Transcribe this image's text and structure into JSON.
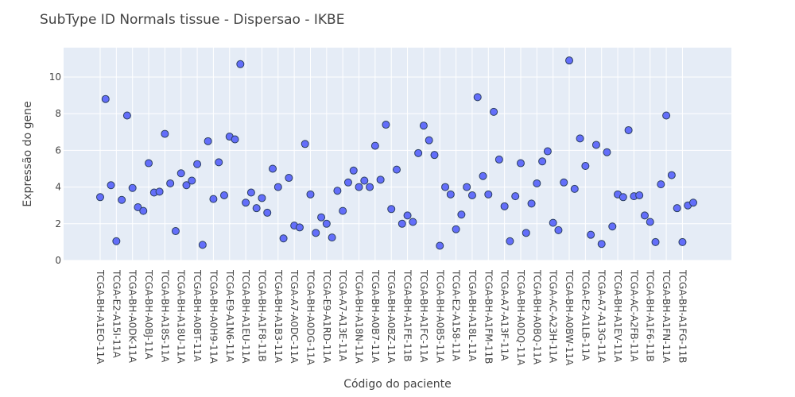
{
  "chart_data": {
    "type": "scatter",
    "title": "SubType ID Normals tissue - Dispersao - IKBE",
    "xlabel": "Código do paciente",
    "ylabel": "Expressão do gene",
    "ylim": [
      0,
      11.6
    ],
    "yticks": [
      0,
      2,
      4,
      6,
      8,
      10
    ],
    "grid": true,
    "legend": "none",
    "colors": {
      "marker": "#636efa",
      "marker_edge": "#2a3f5f",
      "plot_bg": "#e5ecf6",
      "grid": "#ffffff"
    },
    "x_tick_labels": [
      "TCGA-BH-A1EO-11A",
      "TCGA-E2-A15I-11A",
      "TCGA-BH-A0DK-11A",
      "TCGA-BH-A0BJ-11A",
      "TCGA-BH-A18S-11A",
      "TCGA-BH-A18U-11A",
      "TCGA-BH-A0BT-11A",
      "TCGA-BH-A0H9-11A",
      "TCGA-E9-A1N6-11A",
      "TCGA-BH-A1EU-11A",
      "TCGA-BH-A1F8-11B",
      "TCGA-BH-A1B3-11A",
      "TCGA-A7-A0DC-11A",
      "TCGA-BH-A0DG-11A",
      "TCGA-E9-A1RD-11A",
      "TCGA-A7-A13E-11A",
      "TCGA-BH-A18N-11A",
      "TCGA-BH-A0B7-11A",
      "TCGA-BH-A0BZ-11A",
      "TCGA-BH-A1FE-11B",
      "TCGA-BH-A1FC-11A",
      "TCGA-BH-A0B5-11A",
      "TCGA-E2-A158-11A",
      "TCGA-BH-A18L-11A",
      "TCGA-BH-A1FM-11B",
      "TCGA-A7-A13F-11A",
      "TCGA-BH-A0DQ-11A",
      "TCGA-BH-A0BQ-11A",
      "TCGA-AC-A23H-11A",
      "TCGA-BH-A0BW-11A",
      "TCGA-E2-A1LB-11A",
      "TCGA-A7-A13G-11A",
      "TCGA-BH-A1EV-11A",
      "TCGA-AC-A2FB-11A",
      "TCGA-BH-A1F6-11B",
      "TCGA-BH-A1FN-11A",
      "TCGA-BH-A1FG-11B"
    ],
    "y": [
      3.45,
      8.8,
      4.1,
      1.05,
      3.3,
      7.9,
      3.95,
      2.9,
      2.7,
      5.3,
      3.7,
      3.75,
      6.9,
      4.2,
      1.6,
      4.75,
      4.1,
      4.35,
      5.25,
      0.85,
      6.5,
      3.35,
      5.35,
      3.55,
      6.75,
      6.6,
      10.7,
      3.15,
      3.7,
      2.85,
      3.4,
      2.6,
      5.0,
      4.0,
      1.2,
      4.5,
      1.9,
      1.8,
      6.35,
      3.6,
      1.5,
      2.35,
      2.0,
      1.25,
      3.8,
      2.7,
      4.25,
      4.9,
      4.0,
      4.35,
      4.0,
      6.25,
      4.4,
      7.4,
      2.8,
      4.95,
      2.0,
      2.45,
      2.1,
      5.85,
      7.35,
      6.55,
      5.75,
      0.8,
      4.0,
      3.6,
      1.7,
      2.5,
      4.0,
      3.55,
      8.9,
      4.6,
      3.6,
      8.1,
      5.5,
      2.95,
      1.05,
      3.5,
      5.3,
      1.5,
      3.1,
      4.2,
      5.4,
      5.95,
      2.05,
      1.65,
      4.25,
      10.9,
      3.9,
      6.65,
      5.15,
      1.4,
      6.3,
      0.9,
      5.9,
      1.85,
      3.6,
      3.45,
      7.1,
      3.5,
      3.55,
      2.45,
      2.1,
      1.0,
      4.15,
      7.9,
      4.65,
      2.85,
      1.0,
      3.0,
      3.15
    ]
  }
}
